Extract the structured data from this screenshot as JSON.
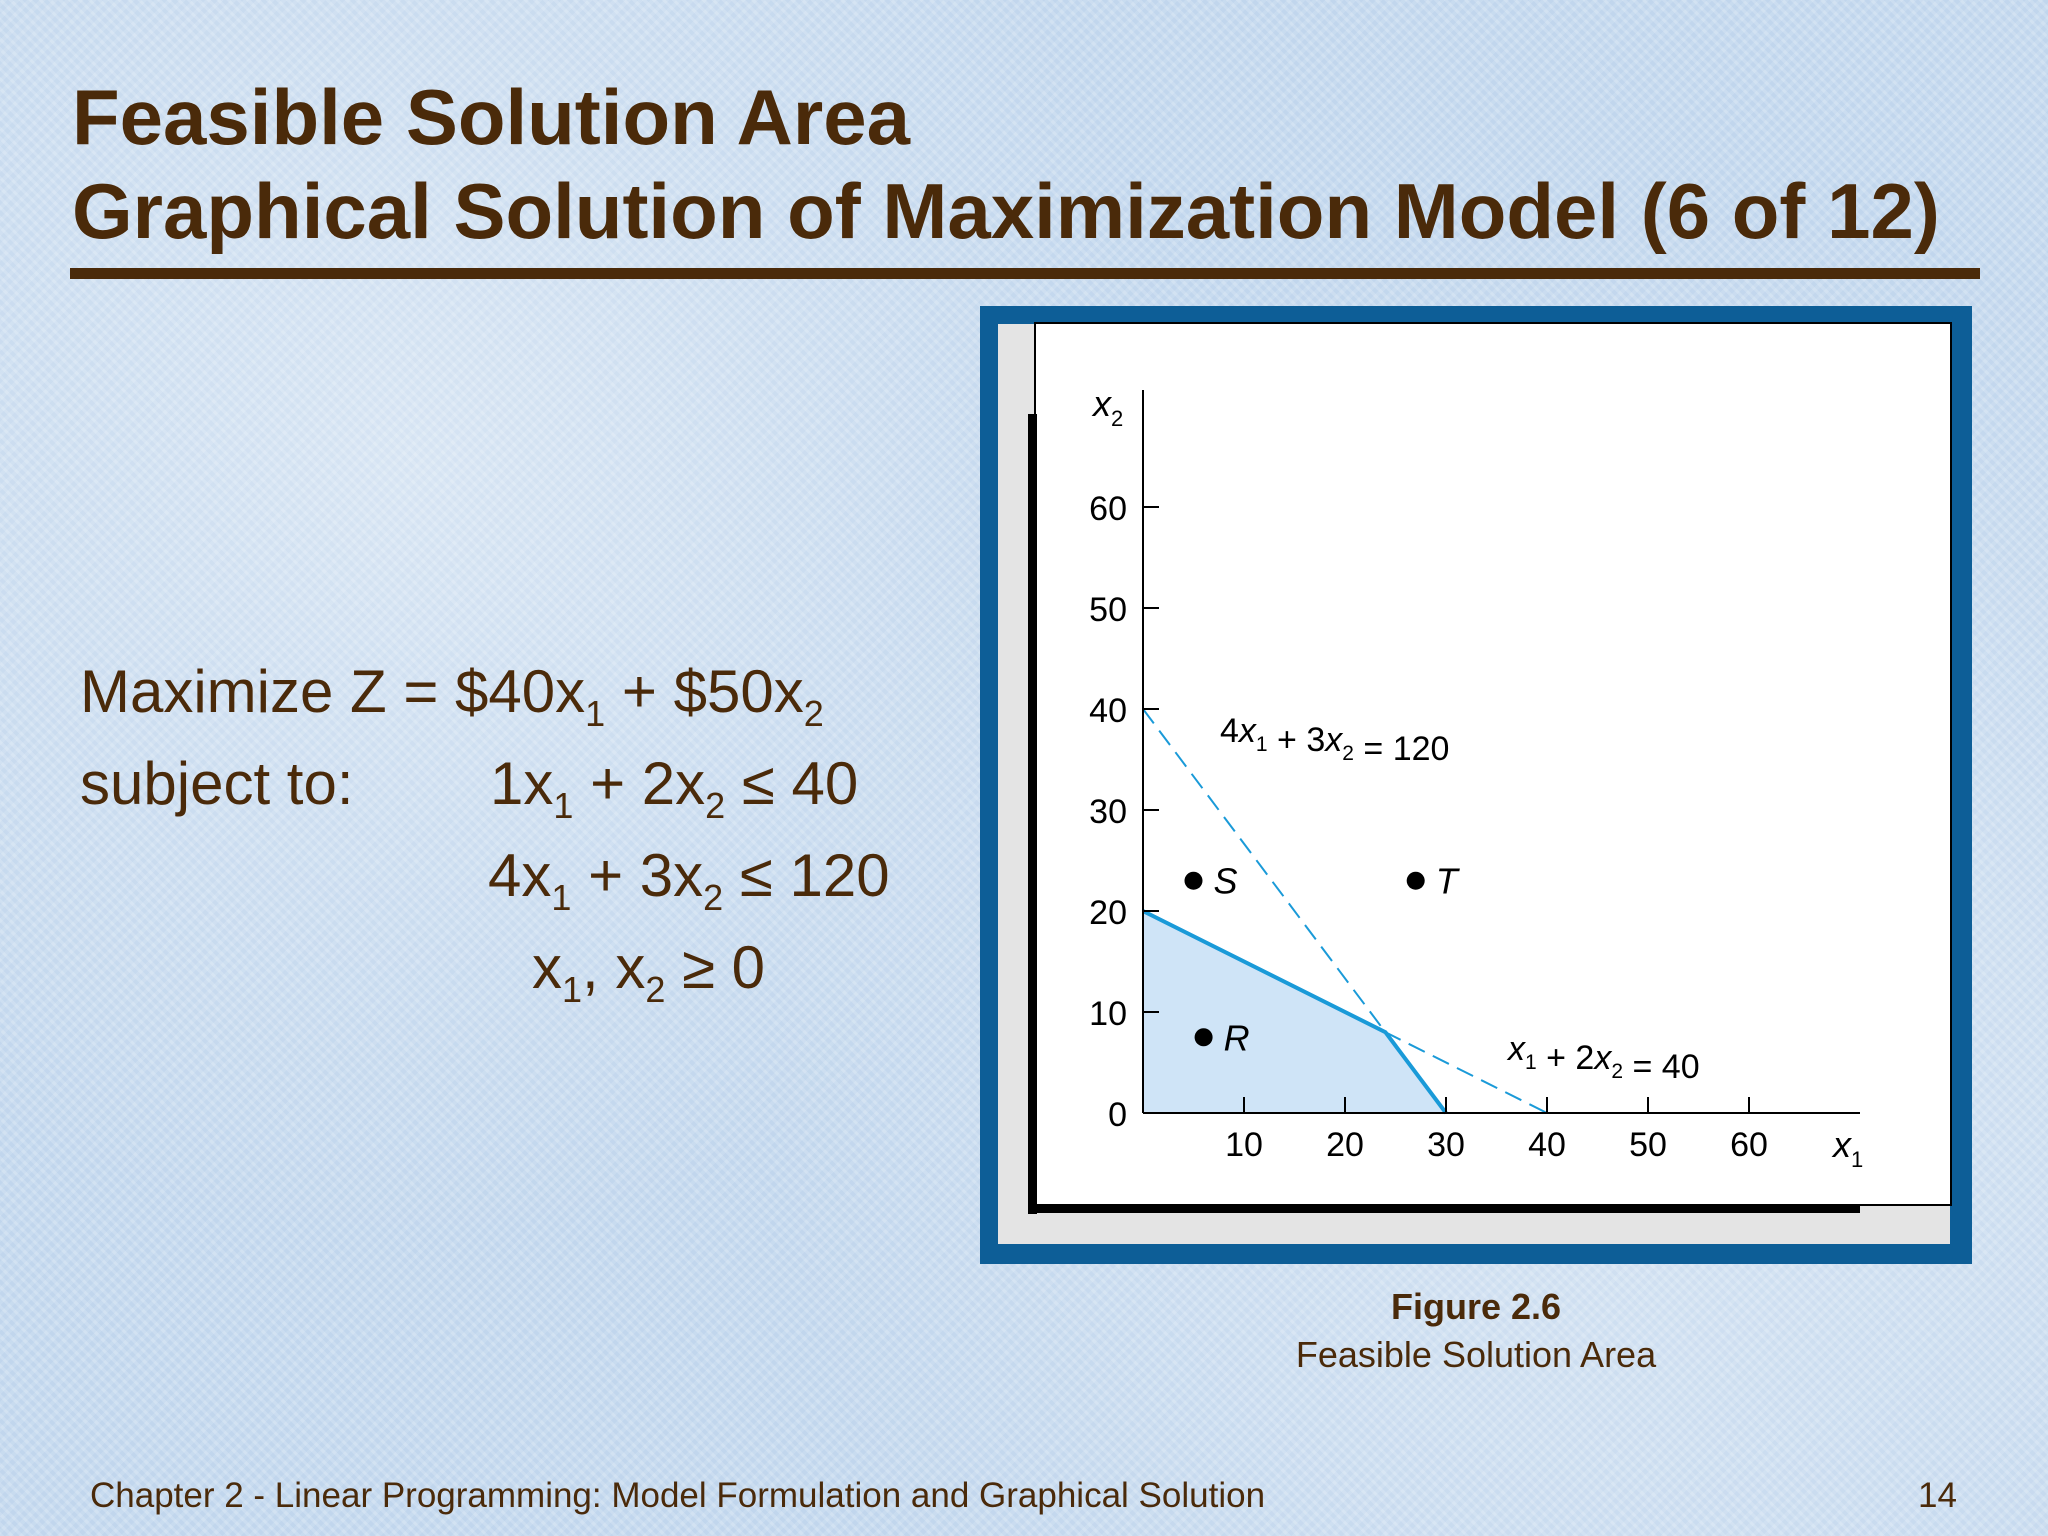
{
  "slide": {
    "title_line1": "Feasible Solution Area",
    "title_line2": "Graphical Solution of Maximization Model (6 of 12)",
    "model": {
      "objective": {
        "prefix": "Maximize Z = $40x",
        "s1": "1",
        "mid": " + $50x",
        "s2": "2"
      },
      "subject_to": "subject to:",
      "c1": {
        "a": "1x",
        "s1": "1",
        "b": " + 2x",
        "s2": "2",
        "rel": " ≤ 40"
      },
      "c2": {
        "a": "4x",
        "s1": "1",
        "b": " + 3x",
        "s2": "2",
        "rel": " ≤ 120"
      },
      "c3": {
        "a": "x",
        "s1": "1",
        "b": ", x",
        "s2": "2",
        "rel": " ≥ 0"
      }
    },
    "figure_number": "Figure 2.6",
    "figure_title": "Feasible Solution Area",
    "footer_text": "Chapter 2 - Linear Programming:  Model Formulation and Graphical Solution",
    "page_number": "14"
  },
  "chart_data": {
    "type": "area",
    "xlabel": "x1",
    "ylabel": "x2",
    "xlim": [
      0,
      70
    ],
    "ylim": [
      0,
      70
    ],
    "x_ticks": [
      10,
      20,
      30,
      40,
      50,
      60
    ],
    "y_ticks": [
      0,
      10,
      20,
      30,
      40,
      50,
      60
    ],
    "feasible_region": [
      [
        0,
        0
      ],
      [
        0,
        20
      ],
      [
        24,
        8
      ],
      [
        30,
        0
      ]
    ],
    "constraints": [
      {
        "label": "4x1 + 3x2 = 120",
        "points": [
          [
            0,
            40
          ],
          [
            30,
            0
          ]
        ]
      },
      {
        "label": "x1 + 2x2 = 40",
        "points": [
          [
            0,
            20
          ],
          [
            40,
            0
          ]
        ]
      }
    ],
    "points": [
      {
        "label": "S",
        "x": 5,
        "y": 23
      },
      {
        "label": "T",
        "x": 27,
        "y": 23
      },
      {
        "label": "R",
        "x": 6,
        "y": 7.5
      }
    ],
    "colors": {
      "region_fill": "#cfe4f7",
      "boundary": "#1a9ad8",
      "dashed": "#1a9ad8",
      "axis": "#000000"
    }
  }
}
